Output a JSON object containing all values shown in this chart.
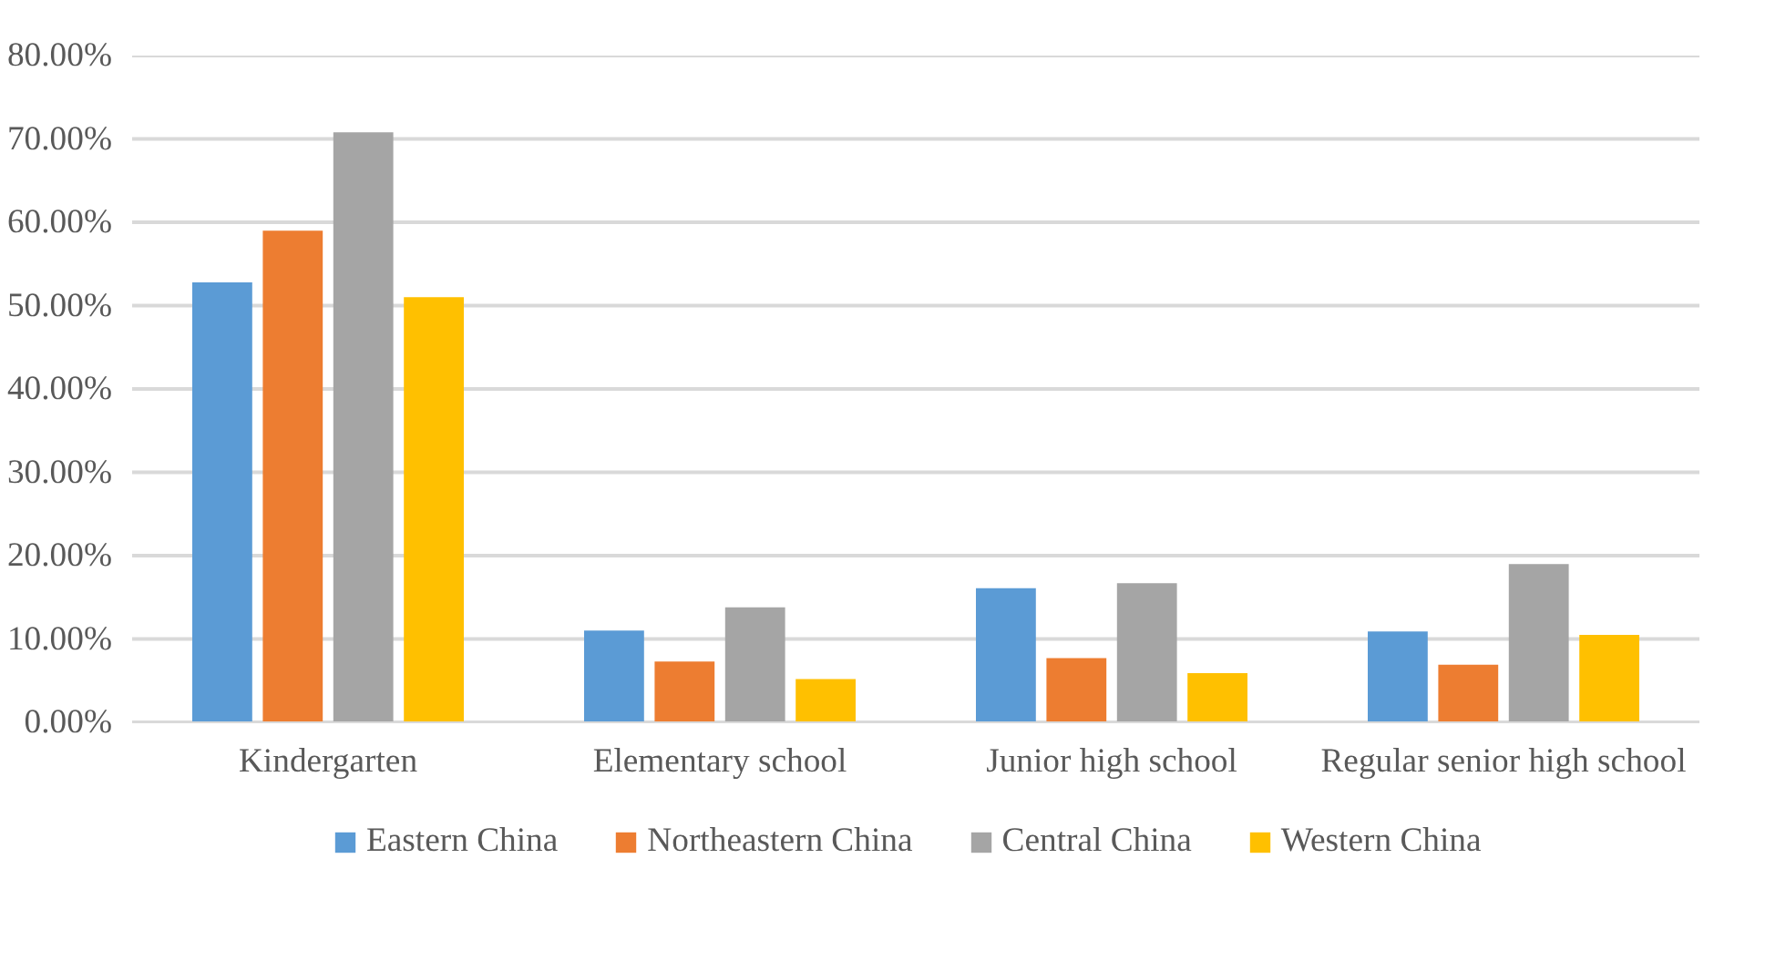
{
  "chart_data": {
    "type": "bar",
    "categories": [
      "Kindergarten",
      "Elementary school",
      "Junior high school",
      "Regular senior high school"
    ],
    "series": [
      {
        "name": "Eastern China",
        "color": "#5b9bd5",
        "values": [
          52.8,
          11.0,
          16.1,
          10.9
        ]
      },
      {
        "name": "Northeastern China",
        "color": "#ed7d31",
        "values": [
          59.0,
          7.3,
          7.7,
          6.9
        ]
      },
      {
        "name": "Central China",
        "color": "#a5a5a5",
        "values": [
          70.8,
          13.8,
          16.7,
          19.0
        ]
      },
      {
        "name": "Western China",
        "color": "#ffc000",
        "values": [
          51.0,
          5.2,
          5.9,
          10.5
        ]
      }
    ],
    "ylim": [
      0,
      80
    ],
    "yticks": [
      {
        "value": 0,
        "label": "0.00%"
      },
      {
        "value": 10,
        "label": "10.00%"
      },
      {
        "value": 20,
        "label": "20.00%"
      },
      {
        "value": 30,
        "label": "30.00%"
      },
      {
        "value": 40,
        "label": "40.00%"
      },
      {
        "value": 50,
        "label": "50.00%"
      },
      {
        "value": 60,
        "label": "60.00%"
      },
      {
        "value": 70,
        "label": "70.00%"
      },
      {
        "value": 80,
        "label": "80.00%"
      }
    ],
    "grid": "y",
    "legend": "bottom"
  }
}
